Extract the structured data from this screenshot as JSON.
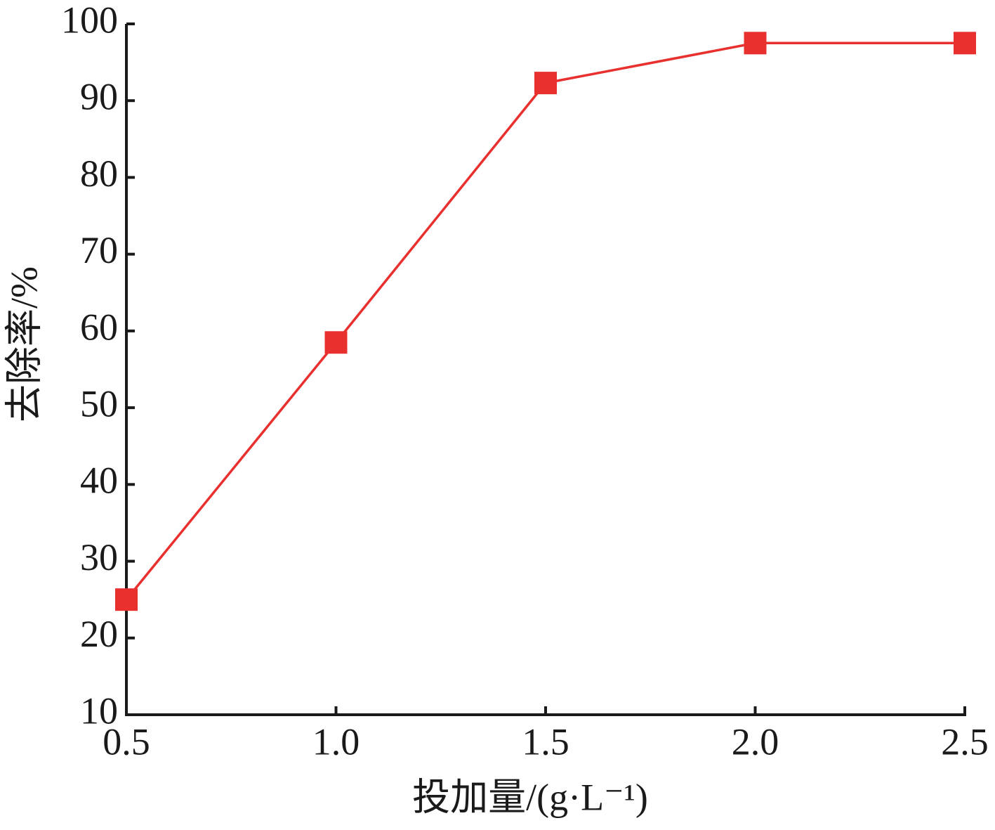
{
  "chart_data": {
    "type": "line",
    "x_label": "投加量/(g·L⁻¹)",
    "y_label": "去除率/%",
    "x": [
      0.5,
      1.0,
      1.5,
      2.0,
      2.5
    ],
    "series": [
      {
        "color": "#e8312f",
        "values": [
          25,
          58.5,
          92.3,
          97.5,
          97.5
        ]
      }
    ],
    "xlim": [
      0.5,
      2.5
    ],
    "xticks": [
      0.5,
      {
        "value": 1.0,
        "label": "1.0"
      },
      1.5,
      {
        "value": 2.0,
        "label": "2.0"
      },
      2.5
    ],
    "ylim": [
      10,
      100
    ],
    "yticks": [
      10,
      20,
      30,
      40,
      50,
      60,
      70,
      80,
      90,
      100
    ]
  }
}
